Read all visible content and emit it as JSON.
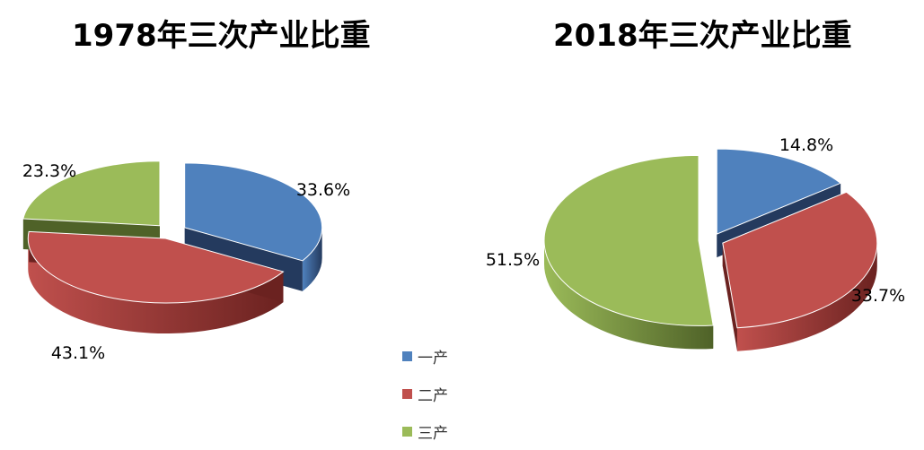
{
  "chart_data": [
    {
      "type": "pie",
      "title": "1978年三次产业比重",
      "categories": [
        "一产",
        "二产",
        "三产"
      ],
      "values": [
        33.6,
        43.1,
        23.3
      ],
      "labels": [
        "33.6%",
        "43.1%",
        "23.3%"
      ]
    },
    {
      "type": "pie",
      "title": "2018年三次产业比重",
      "categories": [
        "一产",
        "二产",
        "三产"
      ],
      "values": [
        14.8,
        33.7,
        51.5
      ],
      "labels": [
        "14.8%",
        "33.7%",
        "51.5%"
      ]
    }
  ],
  "legend": {
    "placement": "bottom-center",
    "items": [
      {
        "label": "一产",
        "color": "#4f81bd"
      },
      {
        "label": "二产",
        "color": "#c0504d"
      },
      {
        "label": "三产",
        "color": "#9bbb59"
      }
    ]
  },
  "colors": {
    "一产": {
      "top": "#4f81bd",
      "side": "#243a5e"
    },
    "二产": {
      "top": "#c0504d",
      "side": "#6b2220"
    },
    "三产": {
      "top": "#9bbb59",
      "side": "#4f6228"
    }
  }
}
